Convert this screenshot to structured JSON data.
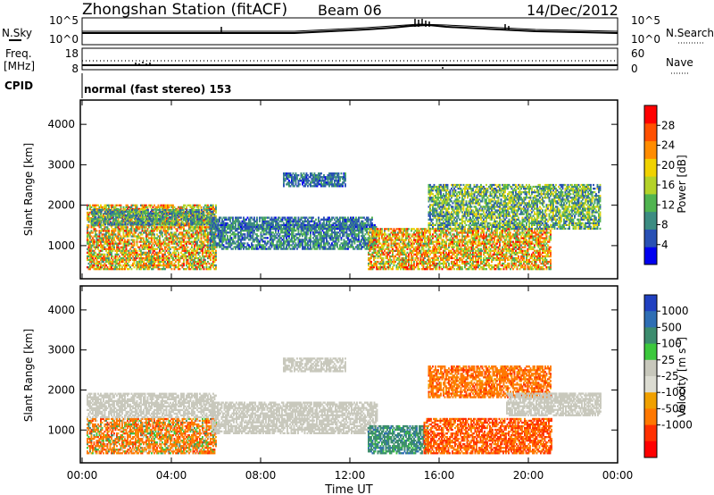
{
  "header": {
    "station": "Zhongshan Station (fitACF)",
    "beam": "Beam 06",
    "date": "14/Dec/2012"
  },
  "labels": {
    "nsky": "N.Sky",
    "nsearch": "N.Search",
    "freq_line1": "Freq.",
    "freq_line2": "[MHz]",
    "cpid": "CPID",
    "nave": "Nave",
    "cpid_text": "normal (fast stereo) 153",
    "top_left_ticks": [
      "10^5",
      "10^0"
    ],
    "top_right_ticks": [
      "10^5",
      "10^0"
    ],
    "freq_ticks": [
      "18",
      "8"
    ],
    "nave_ticks": [
      "60",
      "0"
    ]
  },
  "colors": {
    "power_scale": [
      "#0000f0",
      "#2850b4",
      "#3c8c82",
      "#50b450",
      "#b4d228",
      "#f0d200",
      "#ff8c00",
      "#ff5000",
      "#ff0000"
    ],
    "velocity_scale": [
      "#2040c0",
      "#2e6eb4",
      "#3c8c6e",
      "#3cc83c",
      "#c8c8bc",
      "#dcdcd2",
      "#f0a000",
      "#ff7800",
      "#ff3000",
      "#ff0000"
    ],
    "ground_scatter": "#c8c8bc"
  },
  "chart_data": [
    {
      "type": "heatmap",
      "panel": "power",
      "ylabel": "Slant Range [km]",
      "x_ticks": [
        "00:00",
        "04:00",
        "08:00",
        "12:00",
        "16:00",
        "20:00",
        "00:00"
      ],
      "y_ticks": [
        "1000",
        "2000",
        "3000",
        "4000"
      ],
      "ylim": [
        180,
        4600
      ],
      "xlim_hours": [
        0,
        24
      ],
      "colorbar": {
        "label": "Power [dB]",
        "ticks": [
          "4",
          "8",
          "12",
          "16",
          "20",
          "24",
          "28"
        ],
        "range": [
          0,
          32
        ]
      },
      "regions": [
        {
          "t0": 0.2,
          "t1": 6.0,
          "r0": 400,
          "r1": 2000,
          "v": 22,
          "vmin": 8,
          "vmax": 30
        },
        {
          "t0": 0.4,
          "t1": 5.8,
          "r0": 1500,
          "r1": 1900,
          "v": 10,
          "vmin": 4,
          "vmax": 16
        },
        {
          "t0": 5.7,
          "t1": 13.2,
          "r0": 900,
          "r1": 1500,
          "v": 8,
          "vmin": 3,
          "vmax": 14
        },
        {
          "t0": 5.7,
          "t1": 13.0,
          "r0": 1400,
          "r1": 1700,
          "v": 8,
          "vmin": 3,
          "vmax": 12
        },
        {
          "t0": 9.0,
          "t1": 11.8,
          "r0": 2450,
          "r1": 2800,
          "v": 7,
          "vmin": 3,
          "vmax": 11
        },
        {
          "t0": 12.8,
          "t1": 21.0,
          "r0": 400,
          "r1": 1400,
          "v": 22,
          "vmin": 10,
          "vmax": 30
        },
        {
          "t0": 15.5,
          "t1": 23.2,
          "r0": 1400,
          "r1": 2500,
          "v": 12,
          "vmin": 4,
          "vmax": 20
        }
      ]
    },
    {
      "type": "heatmap",
      "panel": "velocity",
      "ylabel": "Slant Range [km]",
      "xlabel": "Time UT",
      "x_ticks": [
        "00:00",
        "04:00",
        "08:00",
        "12:00",
        "16:00",
        "20:00",
        "00:00"
      ],
      "y_ticks": [
        "1000",
        "2000",
        "3000",
        "4000"
      ],
      "ylim": [
        180,
        4600
      ],
      "xlim_hours": [
        0,
        24
      ],
      "colorbar": {
        "label": "Velocity [m s",
        "label_sup": "-1",
        "label_end": "]",
        "ticks": [
          "1000",
          "500",
          "100",
          "25",
          "-25",
          "-100",
          "-500",
          "-1000"
        ]
      },
      "regions": [
        {
          "t0": 0.2,
          "t1": 6.0,
          "r0": 400,
          "r1": 1300,
          "v": -200,
          "vmin": -600,
          "vmax": 150
        },
        {
          "t0": 0.2,
          "t1": 6.0,
          "r0": 1300,
          "r1": 1900,
          "v": 0,
          "vmin": -25,
          "vmax": 25
        },
        {
          "t0": 5.8,
          "t1": 13.2,
          "r0": 900,
          "r1": 1700,
          "v": 0,
          "vmin": -25,
          "vmax": 25
        },
        {
          "t0": 9.0,
          "t1": 11.8,
          "r0": 2450,
          "r1": 2800,
          "v": 0,
          "vmin": -25,
          "vmax": 25
        },
        {
          "t0": 12.8,
          "t1": 15.5,
          "r0": 400,
          "r1": 1100,
          "v": 150,
          "vmin": 50,
          "vmax": 600
        },
        {
          "t0": 15.3,
          "t1": 21.0,
          "r0": 400,
          "r1": 1300,
          "v": -300,
          "vmin": -900,
          "vmax": -50
        },
        {
          "t0": 15.5,
          "t1": 21.0,
          "r0": 1800,
          "r1": 2600,
          "v": -200,
          "vmin": -600,
          "vmax": -50
        },
        {
          "t0": 19.0,
          "t1": 23.2,
          "r0": 1350,
          "r1": 1900,
          "v": 0,
          "vmin": -25,
          "vmax": 25
        }
      ]
    }
  ]
}
